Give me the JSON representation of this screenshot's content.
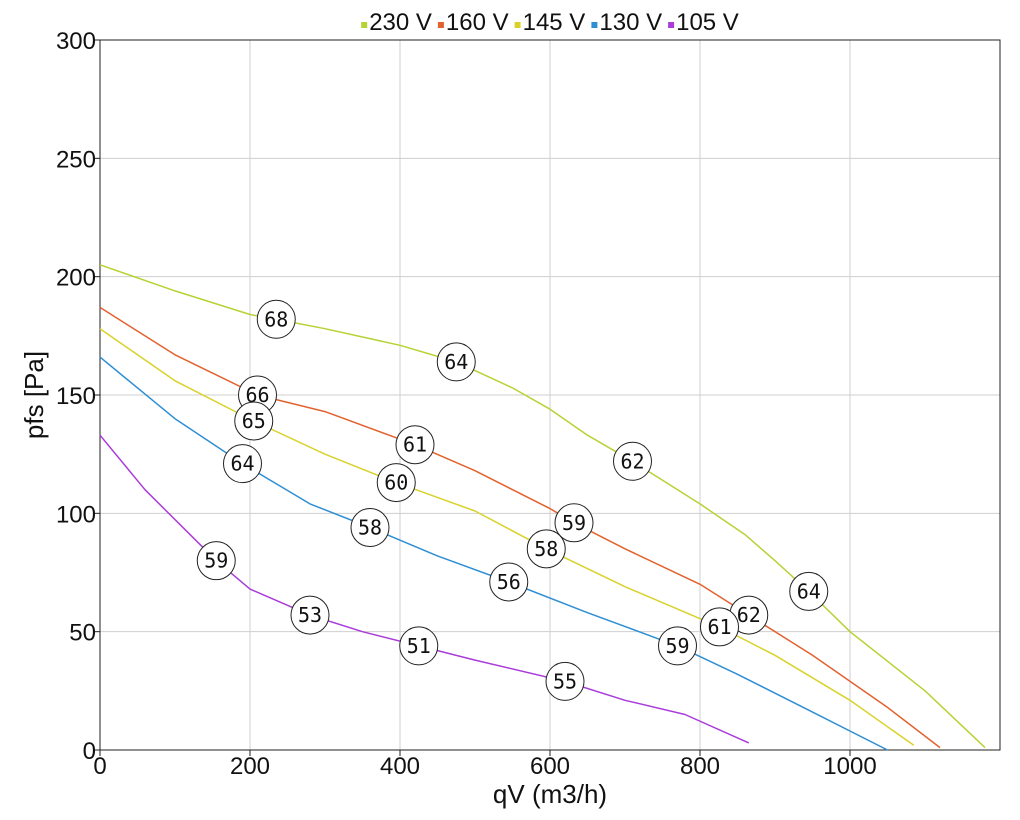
{
  "chart_data": {
    "type": "line",
    "xlabel": "qV (m3/h)",
    "ylabel": "pfs [Pa]",
    "xlim": [
      0,
      1200
    ],
    "ylim": [
      0,
      300
    ],
    "x_ticks": [
      0,
      200,
      400,
      600,
      800,
      1000
    ],
    "y_ticks": [
      0,
      50,
      100,
      150,
      200,
      250,
      300
    ],
    "grid": true,
    "legend_position": "top",
    "series": [
      {
        "name": "230 V",
        "color": "#b5d334",
        "points": [
          [
            0,
            205
          ],
          [
            100,
            194
          ],
          [
            200,
            184
          ],
          [
            235,
            182
          ],
          [
            300,
            178
          ],
          [
            400,
            171
          ],
          [
            475,
            164
          ],
          [
            550,
            153
          ],
          [
            600,
            144
          ],
          [
            650,
            133
          ],
          [
            710,
            122
          ],
          [
            800,
            104
          ],
          [
            860,
            91
          ],
          [
            900,
            80
          ],
          [
            945,
            67
          ],
          [
            1000,
            50
          ],
          [
            1100,
            25
          ],
          [
            1180,
            1
          ]
        ],
        "markers": [
          {
            "x": 235,
            "y": 182,
            "label": "68"
          },
          {
            "x": 475,
            "y": 164,
            "label": "64"
          },
          {
            "x": 710,
            "y": 122,
            "label": "62"
          },
          {
            "x": 945,
            "y": 67,
            "label": "64"
          }
        ]
      },
      {
        "name": "160 V",
        "color": "#e2622e",
        "points": [
          [
            0,
            187
          ],
          [
            100,
            167
          ],
          [
            210,
            150
          ],
          [
            300,
            143
          ],
          [
            420,
            129
          ],
          [
            500,
            118
          ],
          [
            600,
            102
          ],
          [
            632,
            96
          ],
          [
            700,
            85
          ],
          [
            800,
            70
          ],
          [
            865,
            57
          ],
          [
            950,
            40
          ],
          [
            1050,
            18
          ],
          [
            1120,
            1
          ]
        ],
        "markers": [
          {
            "x": 210,
            "y": 150,
            "label": "66"
          },
          {
            "x": 420,
            "y": 129,
            "label": "61"
          },
          {
            "x": 632,
            "y": 96,
            "label": "59"
          },
          {
            "x": 865,
            "y": 57,
            "label": "62"
          }
        ]
      },
      {
        "name": "145 V",
        "color": "#d9d22c",
        "points": [
          [
            0,
            178
          ],
          [
            100,
            156
          ],
          [
            205,
            139
          ],
          [
            300,
            125
          ],
          [
            395,
            113
          ],
          [
            500,
            101
          ],
          [
            595,
            85
          ],
          [
            700,
            69
          ],
          [
            826,
            52
          ],
          [
            900,
            40
          ],
          [
            1000,
            21
          ],
          [
            1085,
            2
          ]
        ],
        "markers": [
          {
            "x": 205,
            "y": 139,
            "label": "65"
          },
          {
            "x": 395,
            "y": 113,
            "label": "60"
          },
          {
            "x": 595,
            "y": 85,
            "label": "58"
          },
          {
            "x": 826,
            "y": 52,
            "label": "61"
          }
        ]
      },
      {
        "name": "130 V",
        "color": "#2f8fd4",
        "points": [
          [
            0,
            166
          ],
          [
            100,
            140
          ],
          [
            190,
            121
          ],
          [
            280,
            104
          ],
          [
            360,
            94
          ],
          [
            450,
            82
          ],
          [
            545,
            71
          ],
          [
            650,
            58
          ],
          [
            770,
            44
          ],
          [
            850,
            32
          ],
          [
            950,
            16
          ],
          [
            1050,
            0
          ]
        ],
        "markers": [
          {
            "x": 190,
            "y": 121,
            "label": "64"
          },
          {
            "x": 360,
            "y": 94,
            "label": "58"
          },
          {
            "x": 545,
            "y": 71,
            "label": "56"
          },
          {
            "x": 770,
            "y": 44,
            "label": "59"
          }
        ]
      },
      {
        "name": "105 V",
        "color": "#a93cda",
        "points": [
          [
            0,
            133
          ],
          [
            60,
            110
          ],
          [
            155,
            80
          ],
          [
            200,
            68
          ],
          [
            280,
            57
          ],
          [
            350,
            50
          ],
          [
            425,
            44
          ],
          [
            500,
            38
          ],
          [
            620,
            29
          ],
          [
            700,
            21
          ],
          [
            780,
            15
          ],
          [
            865,
            3
          ]
        ],
        "markers": [
          {
            "x": 155,
            "y": 80,
            "label": "59"
          },
          {
            "x": 280,
            "y": 57,
            "label": "53"
          },
          {
            "x": 425,
            "y": 44,
            "label": "51"
          },
          {
            "x": 620,
            "y": 29,
            "label": "55"
          }
        ]
      }
    ]
  }
}
